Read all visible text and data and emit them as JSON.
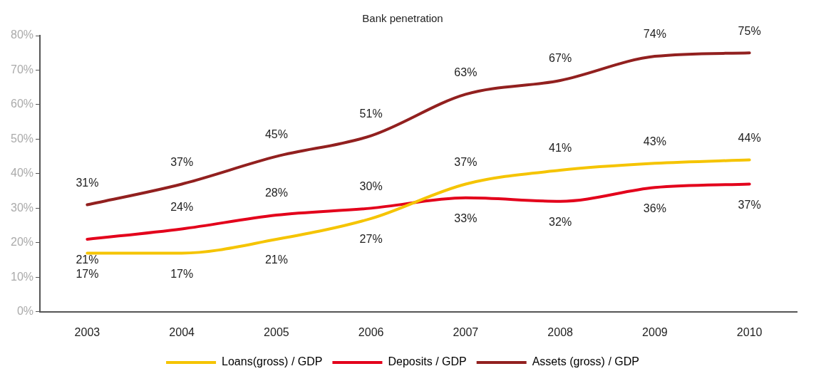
{
  "chart_data": {
    "type": "line",
    "title": "Bank penetration",
    "categories": [
      "2003",
      "2004",
      "2005",
      "2006",
      "2007",
      "2008",
      "2009",
      "2010"
    ],
    "series": [
      {
        "name": "Loans(gross) / GDP",
        "color": "#f5c400",
        "values": [
          17,
          17,
          21,
          27,
          37,
          41,
          43,
          44
        ],
        "value_labels": [
          "17%",
          "17%",
          "21%",
          "27%",
          "37%",
          "41%",
          "43%",
          "44%"
        ]
      },
      {
        "name": "Deposits / GDP",
        "color": "#e3001b",
        "values": [
          21,
          24,
          28,
          30,
          33,
          32,
          36,
          37
        ],
        "value_labels": [
          "21%",
          "24%",
          "28%",
          "30%",
          "33%",
          "32%",
          "36%",
          "37%"
        ]
      },
      {
        "name": "Assets (gross) / GDP",
        "color": "#92201f",
        "values": [
          31,
          37,
          45,
          51,
          63,
          67,
          74,
          75
        ],
        "value_labels": [
          "31%",
          "37%",
          "45%",
          "51%",
          "63%",
          "67%",
          "74%",
          "75%"
        ]
      }
    ],
    "ylim": [
      0,
      80
    ],
    "yticks": [
      {
        "value": 0,
        "label": "0%"
      },
      {
        "value": 10,
        "label": "10%"
      },
      {
        "value": 20,
        "label": "20%"
      },
      {
        "value": 30,
        "label": "30%"
      },
      {
        "value": 40,
        "label": "40%"
      },
      {
        "value": 50,
        "label": "50%"
      },
      {
        "value": 60,
        "label": "60%"
      },
      {
        "value": 70,
        "label": "70%"
      },
      {
        "value": 80,
        "label": "80%"
      }
    ],
    "legend": "bottom",
    "grid": false,
    "marker": "none",
    "line_style": "solid"
  }
}
